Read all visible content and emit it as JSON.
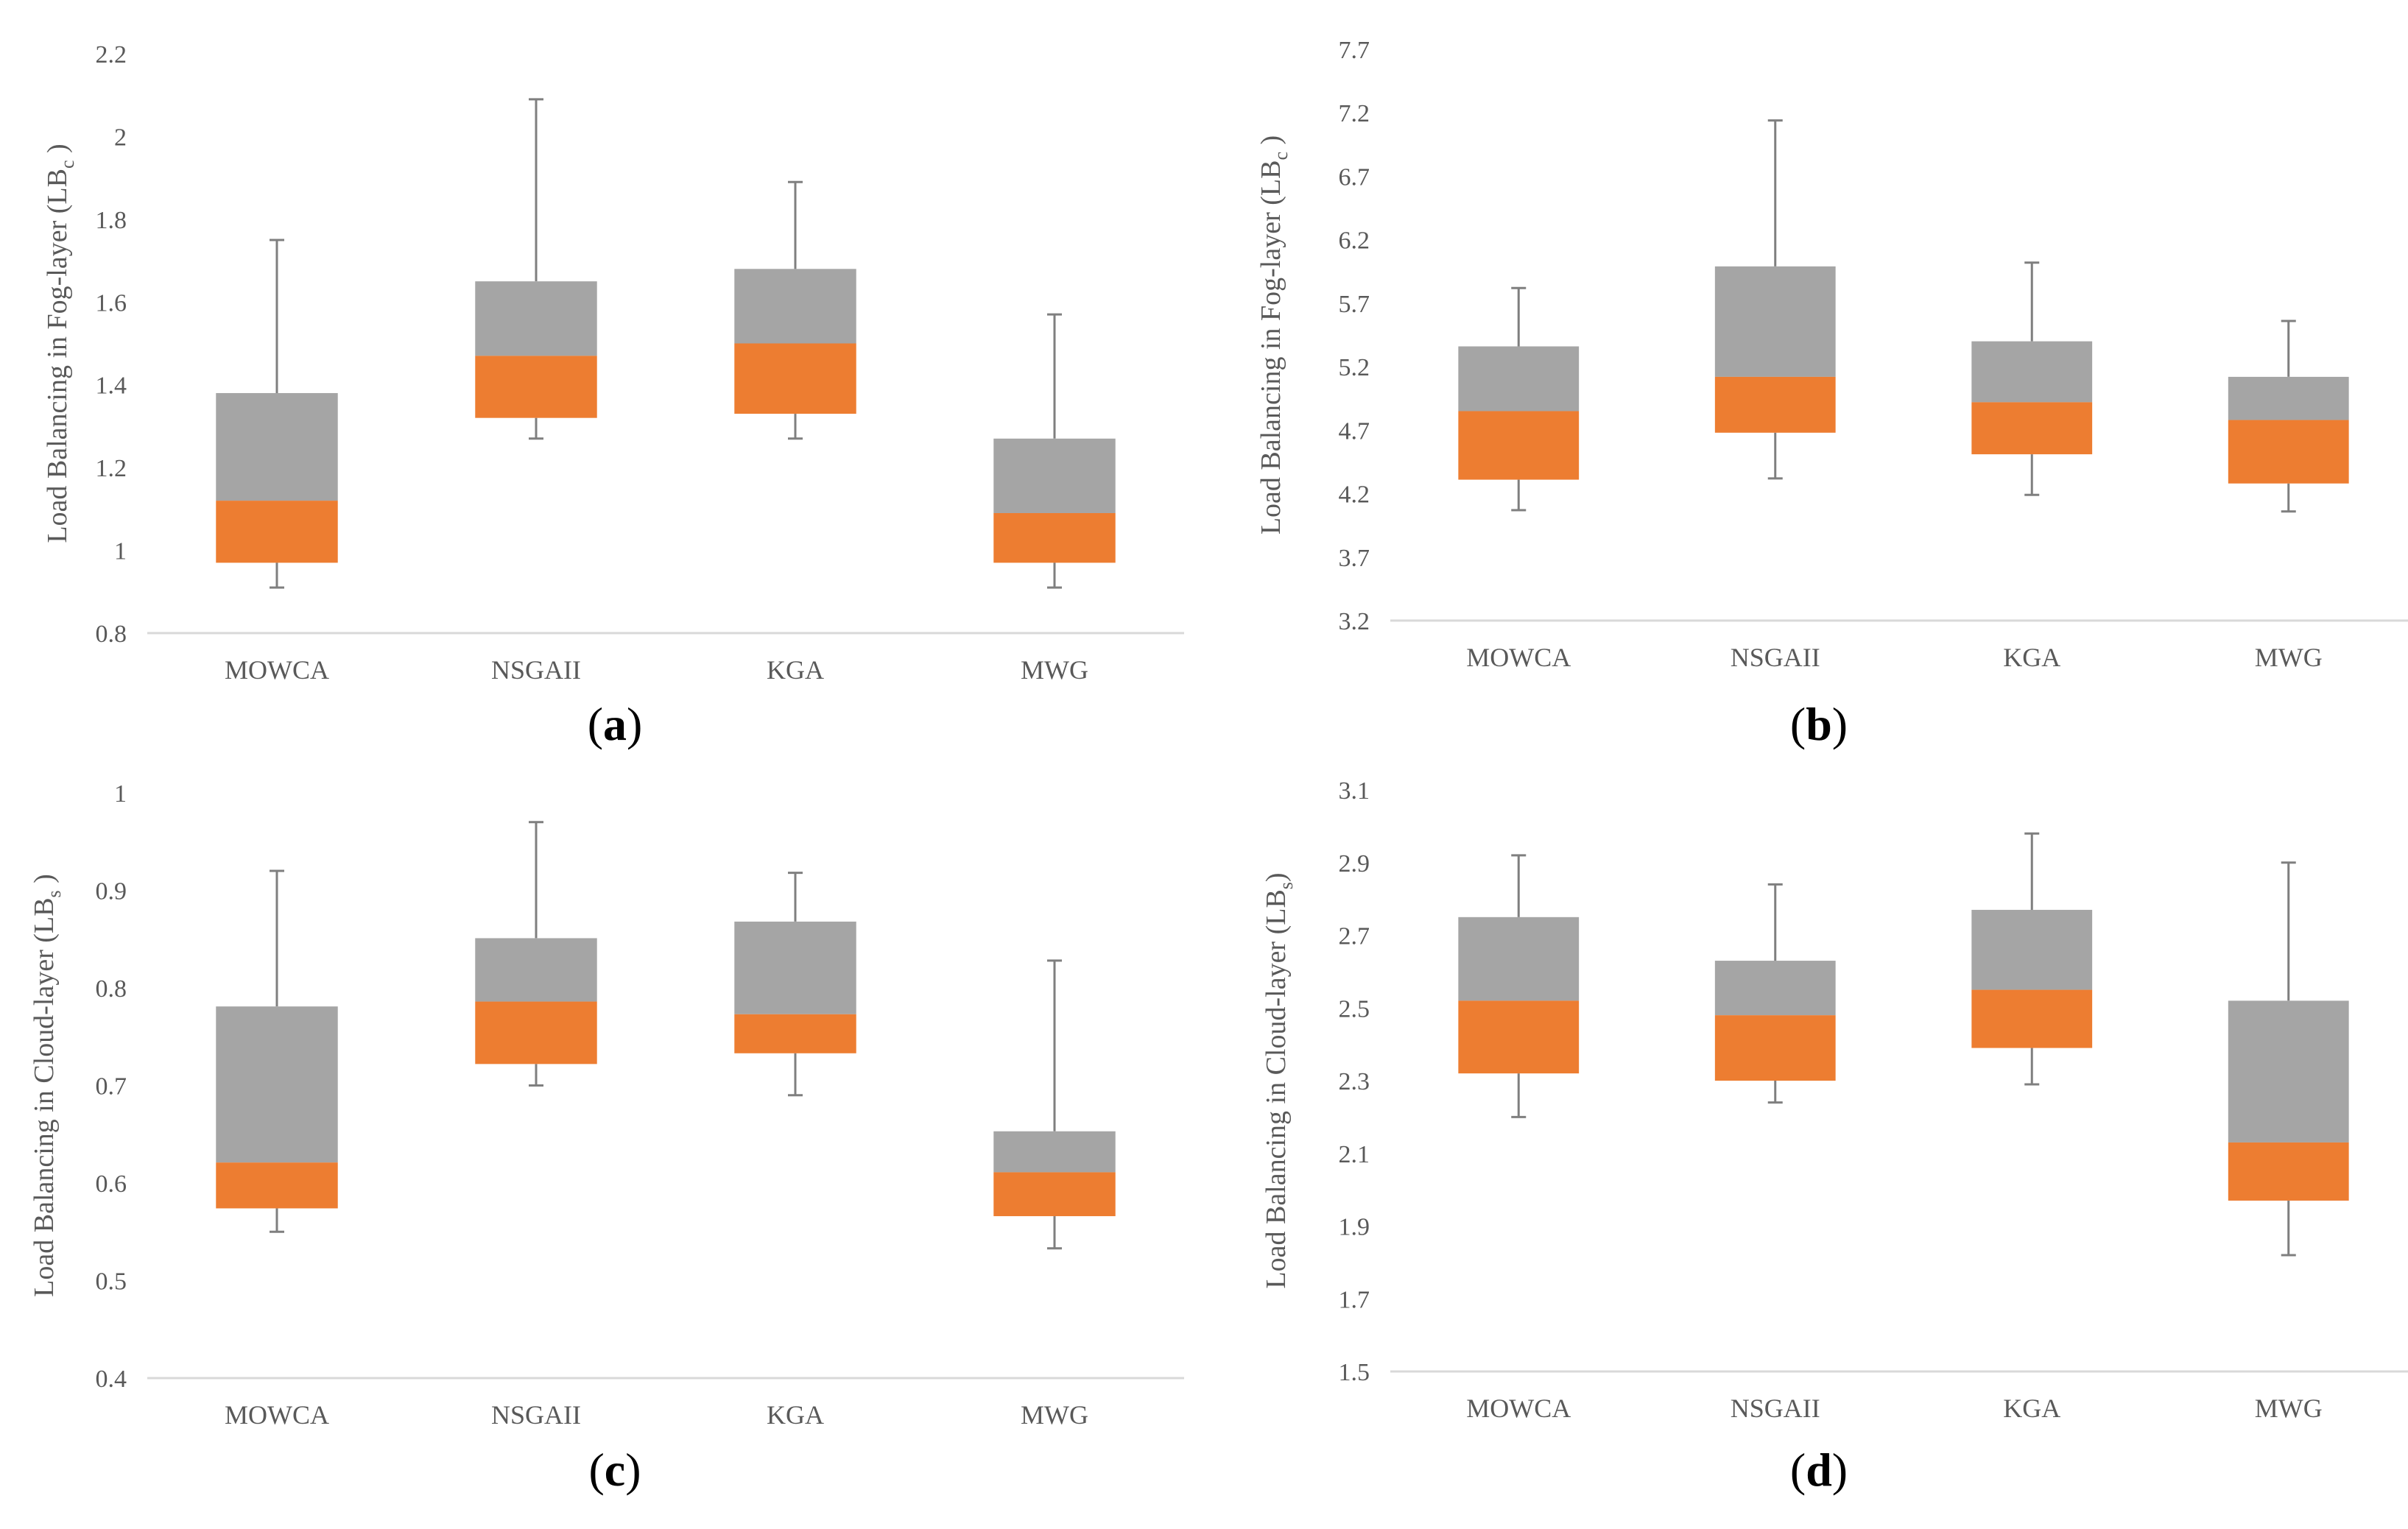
{
  "colors": {
    "upper_box": "#a5a5a5",
    "lower_box": "#ed7d31",
    "whisker": "#7f7f7f",
    "axis": "#d9d9d9",
    "text": "#595959"
  },
  "chart_data": [
    {
      "type": "box",
      "panel": "a",
      "ylabel": "Load Balancing in Fog-layer (LB",
      "ylabel_sub": "c",
      "ylabel_end": " )",
      "ylim": [
        0.8,
        2.2
      ],
      "yticks": [
        "0.8",
        "1",
        "1.2",
        "1.4",
        "1.6",
        "1.8",
        "2",
        "2.2"
      ],
      "categories": [
        "MOWCA",
        "NSGAII",
        "KGA",
        "MWG"
      ],
      "series": [
        {
          "name": "MOWCA",
          "min": 0.91,
          "q1": 0.97,
          "median": 1.12,
          "q3": 1.38,
          "max": 1.75
        },
        {
          "name": "NSGAII",
          "min": 1.27,
          "q1": 1.32,
          "median": 1.47,
          "q3": 1.65,
          "max": 2.09
        },
        {
          "name": "KGA",
          "min": 1.27,
          "q1": 1.33,
          "median": 1.5,
          "q3": 1.68,
          "max": 1.89
        },
        {
          "name": "MWG",
          "min": 0.91,
          "q1": 0.97,
          "median": 1.09,
          "q3": 1.27,
          "max": 1.57
        }
      ]
    },
    {
      "type": "box",
      "panel": "b",
      "ylabel": "Load Balancing in Fog-layer (LB",
      "ylabel_sub": "c",
      "ylabel_end": " )",
      "ylim": [
        3.2,
        7.7
      ],
      "yticks": [
        "3.2",
        "3.7",
        "4.2",
        "4.7",
        "5.2",
        "5.7",
        "6.2",
        "6.7",
        "7.2",
        "7.7"
      ],
      "categories": [
        "MOWCA",
        "NSGAII",
        "KGA",
        "MWG"
      ],
      "series": [
        {
          "name": "MOWCA",
          "min": 4.07,
          "q1": 4.31,
          "median": 4.85,
          "q3": 5.36,
          "max": 5.82
        },
        {
          "name": "NSGAII",
          "min": 4.32,
          "q1": 4.68,
          "median": 5.12,
          "q3": 5.99,
          "max": 7.14
        },
        {
          "name": "KGA",
          "min": 4.19,
          "q1": 4.51,
          "median": 4.92,
          "q3": 5.4,
          "max": 6.02
        },
        {
          "name": "MWG",
          "min": 4.06,
          "q1": 4.28,
          "median": 4.78,
          "q3": 5.12,
          "max": 5.56
        }
      ]
    },
    {
      "type": "box",
      "panel": "c",
      "ylabel": "Load Balancing in Cloud-layer (LB",
      "ylabel_sub": "s",
      "ylabel_end": " )",
      "ylim": [
        0.4,
        1.0
      ],
      "yticks": [
        "0.4",
        "0.5",
        "0.6",
        "0.7",
        "0.8",
        "0.9",
        "1"
      ],
      "categories": [
        "MOWCA",
        "NSGAII",
        "KGA",
        "MWG"
      ],
      "series": [
        {
          "name": "MOWCA",
          "min": 0.55,
          "q1": 0.574,
          "median": 0.621,
          "q3": 0.781,
          "max": 0.92
        },
        {
          "name": "NSGAII",
          "min": 0.7,
          "q1": 0.722,
          "median": 0.786,
          "q3": 0.851,
          "max": 0.97
        },
        {
          "name": "KGA",
          "min": 0.69,
          "q1": 0.733,
          "median": 0.773,
          "q3": 0.868,
          "max": 0.918
        },
        {
          "name": "MWG",
          "min": 0.533,
          "q1": 0.566,
          "median": 0.611,
          "q3": 0.653,
          "max": 0.828
        }
      ]
    },
    {
      "type": "box",
      "panel": "d",
      "ylabel": "Load Balancing in Cloud-layer (LB",
      "ylabel_sub": "s",
      "ylabel_end": ")",
      "ylim": [
        1.5,
        3.1
      ],
      "yticks": [
        "1.5",
        "1.7",
        "1.9",
        "2.1",
        "2.3",
        "2.5",
        "2.7",
        "2.9",
        "3.1"
      ],
      "categories": [
        "MOWCA",
        "NSGAII",
        "KGA",
        "MWG"
      ],
      "series": [
        {
          "name": "MOWCA",
          "min": 2.2,
          "q1": 2.32,
          "median": 2.52,
          "q3": 2.75,
          "max": 2.92
        },
        {
          "name": "NSGAII",
          "min": 2.24,
          "q1": 2.3,
          "median": 2.48,
          "q3": 2.63,
          "max": 2.84
        },
        {
          "name": "KGA",
          "min": 2.29,
          "q1": 2.39,
          "median": 2.55,
          "q3": 2.77,
          "max": 2.98
        },
        {
          "name": "MWG",
          "min": 1.82,
          "q1": 1.97,
          "median": 2.13,
          "q3": 2.52,
          "max": 2.9
        }
      ]
    }
  ],
  "panel_labels": {
    "a": {
      "open": "(",
      "letter": "a",
      "close": ")"
    },
    "b": {
      "open": "(",
      "letter": "b",
      "close": ")"
    },
    "c": {
      "open": "(",
      "letter": "c",
      "close": ")"
    },
    "d": {
      "open": "(",
      "letter": "d",
      "close": ")"
    }
  }
}
